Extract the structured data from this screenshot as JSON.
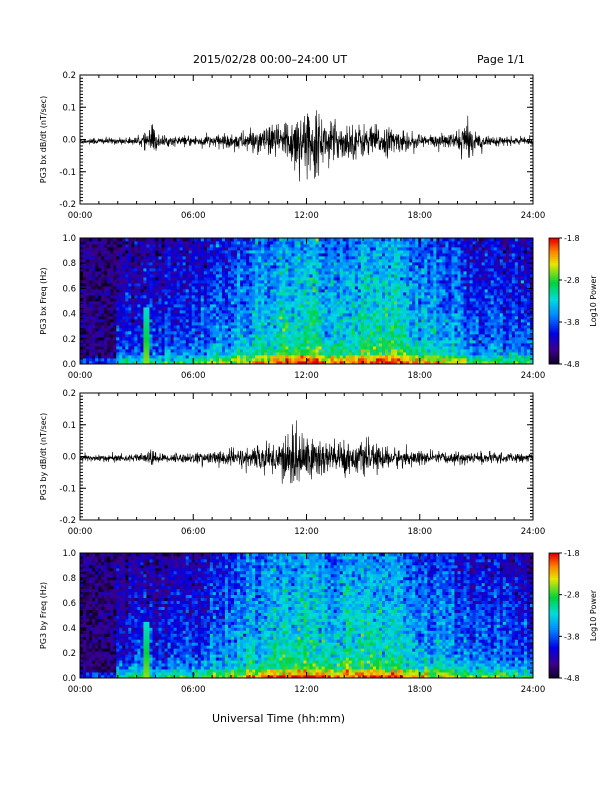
{
  "header": {
    "title": "2015/02/28  00:00–24:00 UT",
    "page": "Page 1/1"
  },
  "xaxis_label": "Universal Time (hh:mm)",
  "chart_data": [
    {
      "type": "line",
      "ylabel": "PG3 bx dB/dt (nT/sec)",
      "xlim": [
        "00:00",
        "24:00"
      ],
      "ylim": [
        -0.2,
        0.2
      ],
      "x_ticks": [
        "00:00",
        "06:00",
        "12:00",
        "18:00",
        "24:00"
      ],
      "y_ticks": [
        "0.2",
        "0.1",
        "0.0",
        "-0.1",
        "-0.2"
      ],
      "envelope": {
        "x_hours": [
          0,
          1,
          2,
          3,
          3.6,
          3.8,
          4.2,
          5,
          6,
          7,
          8,
          9,
          10,
          11,
          11.5,
          12,
          12.5,
          13,
          14,
          15,
          16,
          17,
          18,
          19,
          20,
          20.3,
          20.6,
          21,
          22,
          23,
          24
        ],
        "amplitude": [
          0.01,
          0.012,
          0.01,
          0.012,
          0.03,
          0.06,
          0.02,
          0.015,
          0.018,
          0.02,
          0.025,
          0.035,
          0.045,
          0.08,
          0.1,
          0.09,
          0.1,
          0.07,
          0.06,
          0.055,
          0.05,
          0.035,
          0.025,
          0.02,
          0.03,
          0.07,
          0.05,
          0.03,
          0.015,
          0.012,
          0.012
        ]
      }
    },
    {
      "type": "heatmap",
      "ylabel": "PG3 bx Freq (Hz)",
      "xlim": [
        "00:00",
        "24:00"
      ],
      "ylim": [
        0.0,
        1.0
      ],
      "x_ticks": [
        "00:00",
        "06:00",
        "12:00",
        "18:00",
        "24:00"
      ],
      "y_ticks": [
        "1.0",
        "0.8",
        "0.6",
        "0.4",
        "0.2",
        "0.0"
      ],
      "colorbar": {
        "label": "Log10 Power",
        "min": -4.8,
        "max": -1.8,
        "ticks": [
          "-1.8",
          "-2.8",
          "-3.8",
          "-4.8"
        ]
      }
    },
    {
      "type": "line",
      "ylabel": "PG3 by dB/dt (nT/sec)",
      "xlim": [
        "00:00",
        "24:00"
      ],
      "ylim": [
        -0.2,
        0.2
      ],
      "x_ticks": [
        "00:00",
        "06:00",
        "12:00",
        "18:00",
        "24:00"
      ],
      "y_ticks": [
        "0.2",
        "0.1",
        "0.0",
        "-0.1",
        "-0.2"
      ],
      "envelope": {
        "x_hours": [
          0,
          1,
          2,
          3,
          3.6,
          3.8,
          4.2,
          5,
          6,
          7,
          8,
          9,
          10,
          11,
          11.5,
          12,
          12.5,
          13,
          13.5,
          14,
          15,
          16,
          17,
          18,
          19,
          20,
          21,
          22,
          23,
          24
        ],
        "amplitude": [
          0.012,
          0.012,
          0.012,
          0.012,
          0.02,
          0.03,
          0.015,
          0.015,
          0.018,
          0.022,
          0.03,
          0.035,
          0.045,
          0.08,
          0.1,
          0.09,
          0.08,
          0.07,
          0.06,
          0.055,
          0.05,
          0.04,
          0.03,
          0.025,
          0.02,
          0.02,
          0.02,
          0.018,
          0.015,
          0.015
        ]
      }
    },
    {
      "type": "heatmap",
      "ylabel": "PG3 by Freq (Hz)",
      "xlim": [
        "00:00",
        "24:00"
      ],
      "ylim": [
        0.0,
        1.0
      ],
      "x_ticks": [
        "00:00",
        "06:00",
        "12:00",
        "18:00",
        "24:00"
      ],
      "y_ticks": [
        "1.0",
        "0.8",
        "0.6",
        "0.4",
        "0.2",
        "0.0"
      ],
      "colorbar": {
        "label": "Log10 Power",
        "min": -4.8,
        "max": -1.8,
        "ticks": [
          "-1.8",
          "-2.8",
          "-3.8",
          "-4.8"
        ]
      }
    }
  ]
}
